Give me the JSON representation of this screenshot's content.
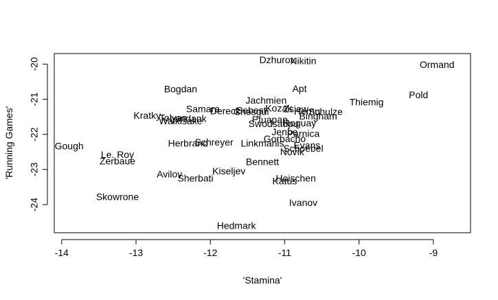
{
  "chart_data": {
    "type": "scatter",
    "title": "",
    "xlabel": "'Stamina'",
    "ylabel": "'Running Games'",
    "xlim": [
      -14.1,
      -8.5
    ],
    "ylim": [
      -24.8,
      -19.7
    ],
    "xticks": [
      -14,
      -13,
      -12,
      -11,
      -10,
      -9
    ],
    "yticks": [
      -24,
      -23,
      -22,
      -21,
      -20
    ],
    "grid": false,
    "legend": "none",
    "points": [
      {
        "label": "Dzhurov",
        "x": -11.1,
        "y": -19.9
      },
      {
        "label": "Nikitin",
        "x": -10.75,
        "y": -19.93
      },
      {
        "label": "Ormand",
        "x": -8.95,
        "y": -20.04
      },
      {
        "label": "Apt",
        "x": -10.8,
        "y": -20.72
      },
      {
        "label": "Bogdan",
        "x": -12.4,
        "y": -20.73
      },
      {
        "label": "Pold",
        "x": -9.2,
        "y": -20.9
      },
      {
        "label": "Jachmien",
        "x": -11.25,
        "y": -21.05
      },
      {
        "label": "Thiemig",
        "x": -9.9,
        "y": -21.1
      },
      {
        "label": "Samara",
        "x": -12.1,
        "y": -21.3
      },
      {
        "label": "Kozak",
        "x": -11.08,
        "y": -21.28
      },
      {
        "label": "Zsiew",
        "x": -10.85,
        "y": -21.3
      },
      {
        "label": "Sebest",
        "x": -11.45,
        "y": -21.34
      },
      {
        "label": "Dereck",
        "x": -11.8,
        "y": -21.36
      },
      {
        "label": "Chesgui",
        "x": -11.45,
        "y": -21.38
      },
      {
        "label": "Hernu",
        "x": -10.7,
        "y": -21.37
      },
      {
        "label": "Schulze",
        "x": -10.45,
        "y": -21.38
      },
      {
        "label": "Bingham",
        "x": -10.55,
        "y": -21.5
      },
      {
        "label": "Kratky",
        "x": -12.85,
        "y": -21.48
      },
      {
        "label": "Tolyan",
        "x": -12.5,
        "y": -21.55
      },
      {
        "label": "Landank",
        "x": -12.3,
        "y": -21.57
      },
      {
        "label": "Walkisake",
        "x": -12.4,
        "y": -21.64
      },
      {
        "label": "Ptuapan",
        "x": -11.2,
        "y": -21.6
      },
      {
        "label": "Swodsadpu",
        "x": -11.15,
        "y": -21.72
      },
      {
        "label": "Roguay",
        "x": -10.8,
        "y": -21.7
      },
      {
        "label": "Jenbe",
        "x": -11.0,
        "y": -21.95
      },
      {
        "label": "Parnica",
        "x": -10.75,
        "y": -22.0
      },
      {
        "label": "Gorbacho",
        "x": -11.0,
        "y": -22.15
      },
      {
        "label": "Schreyer",
        "x": -11.95,
        "y": -22.25
      },
      {
        "label": "Herbrand",
        "x": -12.3,
        "y": -22.28
      },
      {
        "label": "Linkmanis",
        "x": -11.3,
        "y": -22.28
      },
      {
        "label": "Evans",
        "x": -10.7,
        "y": -22.33
      },
      {
        "label": "Schoebel",
        "x": -10.75,
        "y": -22.42
      },
      {
        "label": "Novik",
        "x": -10.9,
        "y": -22.52
      },
      {
        "label": "Gough",
        "x": -13.9,
        "y": -22.35
      },
      {
        "label": "Le. Roy",
        "x": -13.25,
        "y": -22.6
      },
      {
        "label": "Zerbaue",
        "x": -13.25,
        "y": -22.78
      },
      {
        "label": "Bennett",
        "x": -11.3,
        "y": -22.8
      },
      {
        "label": "Kiseljev",
        "x": -11.75,
        "y": -23.07
      },
      {
        "label": "Avilov",
        "x": -12.55,
        "y": -23.15
      },
      {
        "label": "Sherbati",
        "x": -12.2,
        "y": -23.27
      },
      {
        "label": "Hoischen",
        "x": -10.85,
        "y": -23.27
      },
      {
        "label": "Katus",
        "x": -11.0,
        "y": -23.35
      },
      {
        "label": "Skowrone",
        "x": -13.25,
        "y": -23.8
      },
      {
        "label": "Ivanov",
        "x": -10.75,
        "y": -23.97
      },
      {
        "label": "Hedmark",
        "x": -11.65,
        "y": -24.62
      }
    ]
  }
}
